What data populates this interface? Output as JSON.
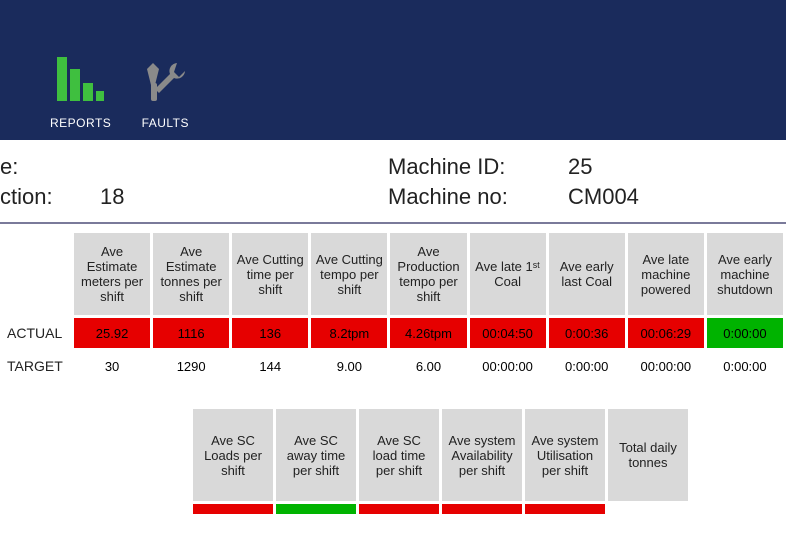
{
  "colors": {
    "header_bg": "#1a2b5c",
    "nav_text": "#ffffff",
    "reports_icon": "#3fbf3f",
    "faults_icon": "#7a7a7a",
    "table_header_bg": "#d9d9d9",
    "cell_red": "#e60000",
    "cell_green": "#00b300",
    "divider": "#7a7a9a"
  },
  "nav": {
    "reports_label": "REPORTS",
    "faults_label": "FAULTS"
  },
  "info": {
    "left_label_1": "e:",
    "left_label_2": "ction:",
    "left_value_2": "18",
    "machine_id_label": "Machine ID:",
    "machine_id_value": "25",
    "machine_no_label": "Machine no:",
    "machine_no_value": "CM004"
  },
  "table1": {
    "headers": [
      "Ave Estimate meters per shift",
      "Ave Estimate tonnes per shift",
      "Ave Cutting time per shift",
      "Ave Cutting tempo per shift",
      "Ave Production tempo per shift",
      "Ave late 1ˢᵗ Coal",
      "Ave early last Coal",
      "Ave late machine powered",
      "Ave early machine shutdown"
    ],
    "rows": [
      {
        "label": "ACTUAL",
        "cells": [
          {
            "v": "25.92",
            "c": "red"
          },
          {
            "v": "1116",
            "c": "red"
          },
          {
            "v": "136",
            "c": "red"
          },
          {
            "v": "8.2tpm",
            "c": "red"
          },
          {
            "v": "4.26tpm",
            "c": "red"
          },
          {
            "v": "00:04:50",
            "c": "red"
          },
          {
            "v": "0:00:36",
            "c": "red"
          },
          {
            "v": "00:06:29",
            "c": "red"
          },
          {
            "v": "0:00:00",
            "c": "green"
          }
        ]
      },
      {
        "label": "TARGET",
        "cells": [
          {
            "v": "30",
            "c": "plain"
          },
          {
            "v": "1290",
            "c": "plain"
          },
          {
            "v": "144",
            "c": "plain"
          },
          {
            "v": "9.00",
            "c": "plain"
          },
          {
            "v": "6.00",
            "c": "plain"
          },
          {
            "v": "00:00:00",
            "c": "plain"
          },
          {
            "v": "0:00:00",
            "c": "plain"
          },
          {
            "v": "00:00:00",
            "c": "plain"
          },
          {
            "v": "0:00:00",
            "c": "plain"
          }
        ]
      }
    ]
  },
  "table2": {
    "headers": [
      "Ave SC Loads per shift",
      "Ave SC away time per shift",
      "Ave SC load time per shift",
      "Ave system Availability per shift",
      "Ave system Utilisation per shift",
      "Total daily tonnes"
    ],
    "sliver": [
      "red",
      "green",
      "red",
      "red",
      "red",
      "plain"
    ]
  }
}
